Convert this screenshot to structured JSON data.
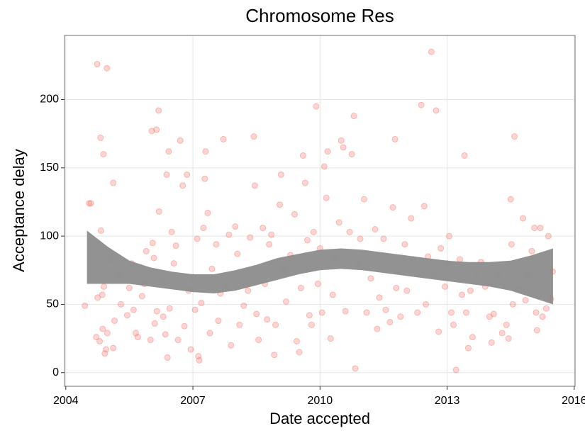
{
  "chart_data": {
    "type": "scatter",
    "title": "Chromosome Res",
    "x_label": "Date accepted",
    "y_label": "Acceptance delay",
    "xlim": [
      2003.97,
      2016.02
    ],
    "ylim": [
      -10,
      247
    ],
    "xticks": [
      2004,
      2007,
      2010,
      2013,
      2016
    ],
    "yticks": [
      0,
      50,
      100,
      150,
      200
    ],
    "grid": true,
    "x": [
      2004.45,
      2004.55,
      2004.59,
      2004.74,
      2004.97,
      2004.82,
      2004.89,
      2004.83,
      2004.75,
      2004.72,
      2004.8,
      2004.87,
      2004.92,
      2004.95,
      2004.98,
      2004.86,
      2004.9,
      2005.12,
      2005.05,
      2005.15,
      2005.12,
      2005.25,
      2005.3,
      2005.45,
      2005.5,
      2005.55,
      2005.6,
      2005.65,
      2005.7,
      2005.8,
      2005.85,
      2005.9,
      2006.0,
      2006.05,
      2006.08,
      2006.1,
      2006.15,
      2006.03,
      2006.14,
      2006.19,
      2006.2,
      2006.25,
      2006.3,
      2006.35,
      2006.38,
      2006.4,
      2006.45,
      2006.43,
      2006.5,
      2006.55,
      2006.6,
      2006.65,
      2006.7,
      2006.76,
      2006.8,
      2006.86,
      2006.9,
      2006.95,
      2007.0,
      2007.05,
      2007.1,
      2007.13,
      2007.15,
      2007.2,
      2007.25,
      2007.28,
      2007.3,
      2007.35,
      2007.4,
      2007.45,
      2007.55,
      2007.6,
      2007.65,
      2007.72,
      2007.78,
      2007.85,
      2007.9,
      2008.0,
      2008.05,
      2008.1,
      2008.2,
      2008.3,
      2008.35,
      2008.44,
      2008.46,
      2008.5,
      2008.55,
      2008.65,
      2008.7,
      2008.75,
      2008.8,
      2008.85,
      2008.92,
      2008.95,
      2009.05,
      2009.08,
      2009.15,
      2009.2,
      2009.3,
      2009.4,
      2009.45,
      2009.51,
      2009.55,
      2009.6,
      2009.65,
      2009.7,
      2009.75,
      2009.8,
      2009.85,
      2009.91,
      2009.95,
      2010.0,
      2010.05,
      2010.1,
      2010.15,
      2010.18,
      2010.25,
      2010.3,
      2010.35,
      2010.45,
      2010.5,
      2010.55,
      2010.6,
      2010.7,
      2010.75,
      2010.8,
      2010.83,
      2010.9,
      2010.95,
      2011.04,
      2011.1,
      2011.2,
      2011.3,
      2011.35,
      2011.4,
      2011.5,
      2011.55,
      2011.65,
      2011.72,
      2011.77,
      2011.8,
      2011.9,
      2012.0,
      2012.05,
      2012.15,
      2012.2,
      2012.3,
      2012.39,
      2012.46,
      2012.5,
      2012.55,
      2012.63,
      2012.68,
      2012.74,
      2012.8,
      2012.85,
      2012.95,
      2013.0,
      2013.05,
      2013.1,
      2013.15,
      2013.21,
      2013.3,
      2013.35,
      2013.41,
      2013.45,
      2013.5,
      2013.55,
      2013.6,
      2013.7,
      2013.8,
      2013.9,
      2014.0,
      2014.05,
      2014.1,
      2014.2,
      2014.3,
      2014.4,
      2014.45,
      2014.5,
      2014.52,
      2014.55,
      2014.59,
      2014.7,
      2014.79,
      2014.85,
      2014.9,
      2015.0,
      2015.06,
      2015.1,
      2015.12,
      2015.2,
      2015.25,
      2015.34,
      2015.39,
      2015.45,
      2015.49
    ],
    "series": [
      {
        "color": "#f8766d",
        "values": [
          49,
          124,
          124,
          226,
          223,
          172,
          160,
          104,
          55,
          26,
          23,
          32,
          14,
          17,
          29,
          57,
          63,
          139,
          83,
          38,
          18,
          72,
          50,
          42,
          62,
          80,
          46,
          29,
          26,
          56,
          65,
          89,
          24,
          95,
          84,
          36,
          45,
          177,
          178,
          192,
          118,
          68,
          41,
          28,
          145,
          11,
          47,
          162,
          103,
          80,
          93,
          24,
          170,
          137,
          34,
          145,
          60,
          17,
          70,
          46,
          98,
          12,
          9,
          51,
          106,
          142,
          162,
          117,
          29,
          76,
          94,
          38,
          58,
          171,
          64,
          101,
          20,
          107,
          87,
          35,
          49,
          60,
          99,
          173,
          137,
          43,
          24,
          106,
          65,
          39,
          94,
          101,
          13,
          35,
          123,
          145,
          75,
          52,
          86,
          116,
          23,
          15,
          62,
          159,
          139,
          97,
          42,
          35,
          103,
          195,
          65,
          91,
          44,
          151,
          128,
          162,
          25,
          57,
          85,
          110,
          170,
          165,
          45,
          103,
          160,
          188,
          3,
          79,
          98,
          127,
          44,
          69,
          105,
          32,
          55,
          98,
          46,
          37,
          121,
          171,
          62,
          41,
          94,
          60,
          113,
          83,
          44,
          196,
          122,
          50,
          85,
          235,
          72,
          192,
          30,
          91,
          63,
          80,
          100,
          44,
          35,
          2,
          83,
          57,
          159,
          44,
          18,
          60,
          26,
          70,
          81,
          63,
          41,
          22,
          43,
          72,
          29,
          35,
          25,
          127,
          94,
          50,
          173,
          62,
          113,
          53,
          71,
          89,
          106,
          44,
          31,
          106,
          41,
          47,
          100,
          54,
          74
        ]
      }
    ],
    "band": {
      "color": "#8c8c8c",
      "x": [
        2004.5,
        2005,
        2005.5,
        2006,
        2006.5,
        2007,
        2007.5,
        2008,
        2008.5,
        2009,
        2009.5,
        2010,
        2010.5,
        2011,
        2011.5,
        2012,
        2012.5,
        2013,
        2013.5,
        2014,
        2014.5,
        2015,
        2015.5
      ],
      "lower": [
        65,
        65,
        65,
        63,
        61,
        59,
        58,
        60,
        64,
        68,
        72,
        75,
        76,
        75,
        73,
        71,
        69,
        67,
        65,
        63,
        60,
        55,
        50
      ],
      "upper": [
        104,
        92,
        82,
        77,
        74,
        72,
        72,
        75,
        79,
        84,
        87,
        90,
        91,
        90,
        88,
        86,
        84,
        82,
        81,
        81,
        82,
        86,
        91
      ]
    }
  }
}
